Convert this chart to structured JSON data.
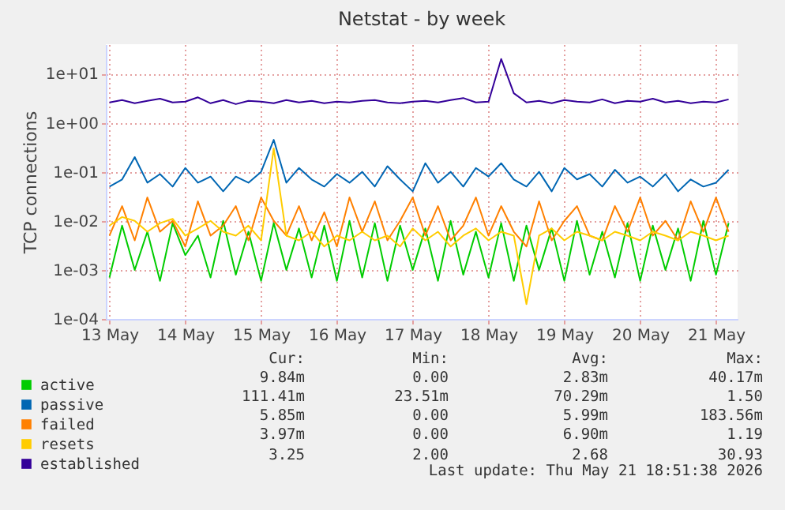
{
  "chart_data": {
    "type": "line",
    "title": "Netstat - by week",
    "ylabel": "TCP connections",
    "x": [
      "2026-05-13T12:00",
      "2026-05-13T16:00",
      "2026-05-13T20:00",
      "2026-05-14T00:00",
      "2026-05-14T04:00",
      "2026-05-14T08:00",
      "2026-05-14T12:00",
      "2026-05-14T16:00",
      "2026-05-14T20:00",
      "2026-05-15T00:00",
      "2026-05-15T04:00",
      "2026-05-15T08:00",
      "2026-05-15T12:00",
      "2026-05-15T16:00",
      "2026-05-15T20:00",
      "2026-05-16T00:00",
      "2026-05-16T04:00",
      "2026-05-16T08:00",
      "2026-05-16T12:00",
      "2026-05-16T16:00",
      "2026-05-16T20:00",
      "2026-05-17T00:00",
      "2026-05-17T04:00",
      "2026-05-17T08:00",
      "2026-05-17T12:00",
      "2026-05-17T16:00",
      "2026-05-17T20:00",
      "2026-05-18T00:00",
      "2026-05-18T04:00",
      "2026-05-18T08:00",
      "2026-05-18T12:00",
      "2026-05-18T16:00",
      "2026-05-18T20:00",
      "2026-05-19T00:00",
      "2026-05-19T04:00",
      "2026-05-19T08:00",
      "2026-05-19T12:00",
      "2026-05-19T16:00",
      "2026-05-19T20:00",
      "2026-05-20T00:00",
      "2026-05-20T04:00",
      "2026-05-20T08:00",
      "2026-05-20T12:00",
      "2026-05-20T16:00",
      "2026-05-20T20:00",
      "2026-05-21T00:00",
      "2026-05-21T04:00",
      "2026-05-21T08:00",
      "2026-05-21T12:00",
      "2026-05-21T16:00"
    ],
    "series": [
      {
        "name": "active",
        "color": "#00cc00",
        "values": [
          0.0007,
          0.008,
          0.001,
          0.006,
          0.0006,
          0.009,
          0.002,
          0.005,
          0.0007,
          0.01,
          0.0008,
          0.006,
          0.0006,
          0.009,
          0.001,
          0.007,
          0.0007,
          0.008,
          0.0006,
          0.01,
          0.0007,
          0.009,
          0.0006,
          0.008,
          0.001,
          0.007,
          0.0006,
          0.01,
          0.0008,
          0.006,
          0.0007,
          0.009,
          0.0006,
          0.008,
          0.001,
          0.007,
          0.0006,
          0.01,
          0.0008,
          0.006,
          0.0007,
          0.009,
          0.0006,
          0.008,
          0.001,
          0.007,
          0.0006,
          0.01,
          0.0008,
          0.009
        ]
      },
      {
        "name": "passive",
        "color": "#0066b3",
        "values": [
          0.05,
          0.07,
          0.2,
          0.06,
          0.09,
          0.05,
          0.12,
          0.06,
          0.08,
          0.04,
          0.08,
          0.06,
          0.1,
          0.45,
          0.06,
          0.12,
          0.07,
          0.05,
          0.09,
          0.06,
          0.1,
          0.05,
          0.13,
          0.07,
          0.04,
          0.15,
          0.06,
          0.1,
          0.05,
          0.12,
          0.08,
          0.15,
          0.07,
          0.05,
          0.1,
          0.04,
          0.12,
          0.07,
          0.09,
          0.05,
          0.11,
          0.06,
          0.08,
          0.05,
          0.09,
          0.04,
          0.07,
          0.05,
          0.06,
          0.11
        ]
      },
      {
        "name": "failed",
        "color": "#ff8000",
        "values": [
          0.005,
          0.02,
          0.004,
          0.03,
          0.006,
          0.01,
          0.003,
          0.025,
          0.005,
          0.008,
          0.02,
          0.004,
          0.03,
          0.01,
          0.005,
          0.02,
          0.004,
          0.015,
          0.003,
          0.03,
          0.006,
          0.025,
          0.004,
          0.01,
          0.03,
          0.005,
          0.02,
          0.004,
          0.008,
          0.03,
          0.005,
          0.02,
          0.006,
          0.003,
          0.025,
          0.004,
          0.01,
          0.02,
          0.005,
          0.004,
          0.02,
          0.006,
          0.03,
          0.005,
          0.01,
          0.004,
          0.025,
          0.006,
          0.03,
          0.006
        ]
      },
      {
        "name": "resets",
        "color": "#ffcc00",
        "values": [
          0.008,
          0.012,
          0.01,
          0.006,
          0.009,
          0.011,
          0.005,
          0.007,
          0.01,
          0.006,
          0.005,
          0.008,
          0.004,
          0.3,
          0.005,
          0.004,
          0.006,
          0.003,
          0.005,
          0.004,
          0.006,
          0.004,
          0.005,
          0.003,
          0.007,
          0.004,
          0.006,
          0.003,
          0.005,
          0.007,
          0.004,
          0.006,
          0.005,
          0.0002,
          0.005,
          0.007,
          0.004,
          0.006,
          0.005,
          0.004,
          0.006,
          0.005,
          0.004,
          0.006,
          0.005,
          0.004,
          0.006,
          0.005,
          0.004,
          0.005
        ]
      },
      {
        "name": "established",
        "color": "#330099",
        "values": [
          2.6,
          2.9,
          2.5,
          2.8,
          3.1,
          2.6,
          2.7,
          3.3,
          2.5,
          2.9,
          2.4,
          2.8,
          2.7,
          2.5,
          2.9,
          2.6,
          2.8,
          2.5,
          2.7,
          2.6,
          2.8,
          2.9,
          2.6,
          2.5,
          2.7,
          2.8,
          2.6,
          2.9,
          3.2,
          2.6,
          2.7,
          20,
          4,
          2.6,
          2.8,
          2.5,
          2.9,
          2.7,
          2.6,
          3.0,
          2.5,
          2.8,
          2.7,
          3.1,
          2.6,
          2.8,
          2.5,
          2.7,
          2.6,
          3.0
        ]
      }
    ],
    "log": "y",
    "xlim": [
      "2026-05-13T10:51",
      "2026-05-21T18:51"
    ],
    "xticks": [
      {
        "value": "2026-05-13T12:00",
        "label": "13 May"
      },
      {
        "value": "2026-05-14T12:00",
        "label": "14 May"
      },
      {
        "value": "2026-05-15T12:00",
        "label": "15 May"
      },
      {
        "value": "2026-05-16T12:00",
        "label": "16 May"
      },
      {
        "value": "2026-05-17T12:00",
        "label": "17 May"
      },
      {
        "value": "2026-05-18T12:00",
        "label": "18 May"
      },
      {
        "value": "2026-05-19T12:00",
        "label": "19 May"
      },
      {
        "value": "2026-05-20T12:00",
        "label": "20 May"
      },
      {
        "value": "2026-05-21T12:00",
        "label": "21 May"
      }
    ],
    "ylim": [
      0.0001,
      40
    ],
    "yticks": [
      {
        "value": 0.0001,
        "label": "1e-04"
      },
      {
        "value": 0.001,
        "label": "1e-03"
      },
      {
        "value": 0.01,
        "label": "1e-02"
      },
      {
        "value": 0.1,
        "label": "1e-01"
      },
      {
        "value": 1,
        "label": "1e+00"
      },
      {
        "value": 10,
        "label": "1e+01"
      }
    ],
    "grid": true,
    "legend": "bottom left",
    "annotations": [
      "Cur:",
      "Min:",
      "Avg:",
      "Max:",
      "9.84m",
      "0.00",
      "2.83m",
      "40.17m",
      "111.41m",
      "23.51m",
      "70.29m",
      "1.50",
      "5.85m",
      "0.00",
      "5.99m",
      "183.56m",
      "3.97m",
      "0.00",
      "6.90m",
      "1.19",
      "3.25",
      "2.00",
      "2.68",
      "30.93",
      "Last update: Thu May 21 18:51:38 2026"
    ]
  }
}
